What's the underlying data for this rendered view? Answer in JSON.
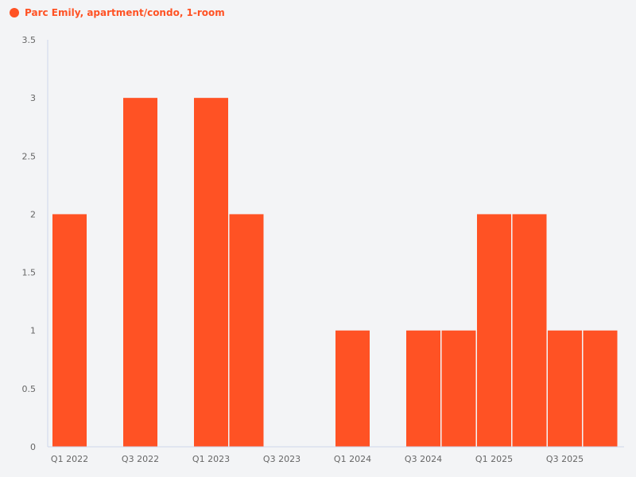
{
  "chart_data": {
    "type": "bar",
    "title": "",
    "xlabel": "",
    "ylabel": "",
    "legend": {
      "position": "top-left",
      "entries": [
        "Parc Emily, apartment/condo, 1-room"
      ]
    },
    "series": [
      {
        "name": "Parc Emily, apartment/condo, 1-room",
        "color": "#ff5224",
        "values": [
          2,
          0,
          3,
          0,
          3,
          2,
          0,
          0,
          1,
          0,
          1,
          1,
          2,
          2,
          1,
          1
        ]
      }
    ],
    "categories": [
      "Q1 2022",
      "Q2 2022",
      "Q3 2022",
      "Q4 2022",
      "Q1 2023",
      "Q2 2023",
      "Q3 2023",
      "Q4 2023",
      "Q1 2024",
      "Q2 2024",
      "Q3 2024",
      "Q4 2024",
      "Q1 2025",
      "Q2 2025",
      "Q3 2025",
      "Q4 2025"
    ],
    "x_tick_labels": [
      "Q1 2022",
      "Q3 2022",
      "Q1 2023",
      "Q3 2023",
      "Q1 2024",
      "Q3 2024",
      "Q1 2025",
      "Q3 2025"
    ],
    "y_ticks": [
      0,
      0.5,
      1,
      1.5,
      2,
      2.5,
      3,
      3.5
    ],
    "ylim": [
      0,
      3.5
    ],
    "grid": false
  }
}
